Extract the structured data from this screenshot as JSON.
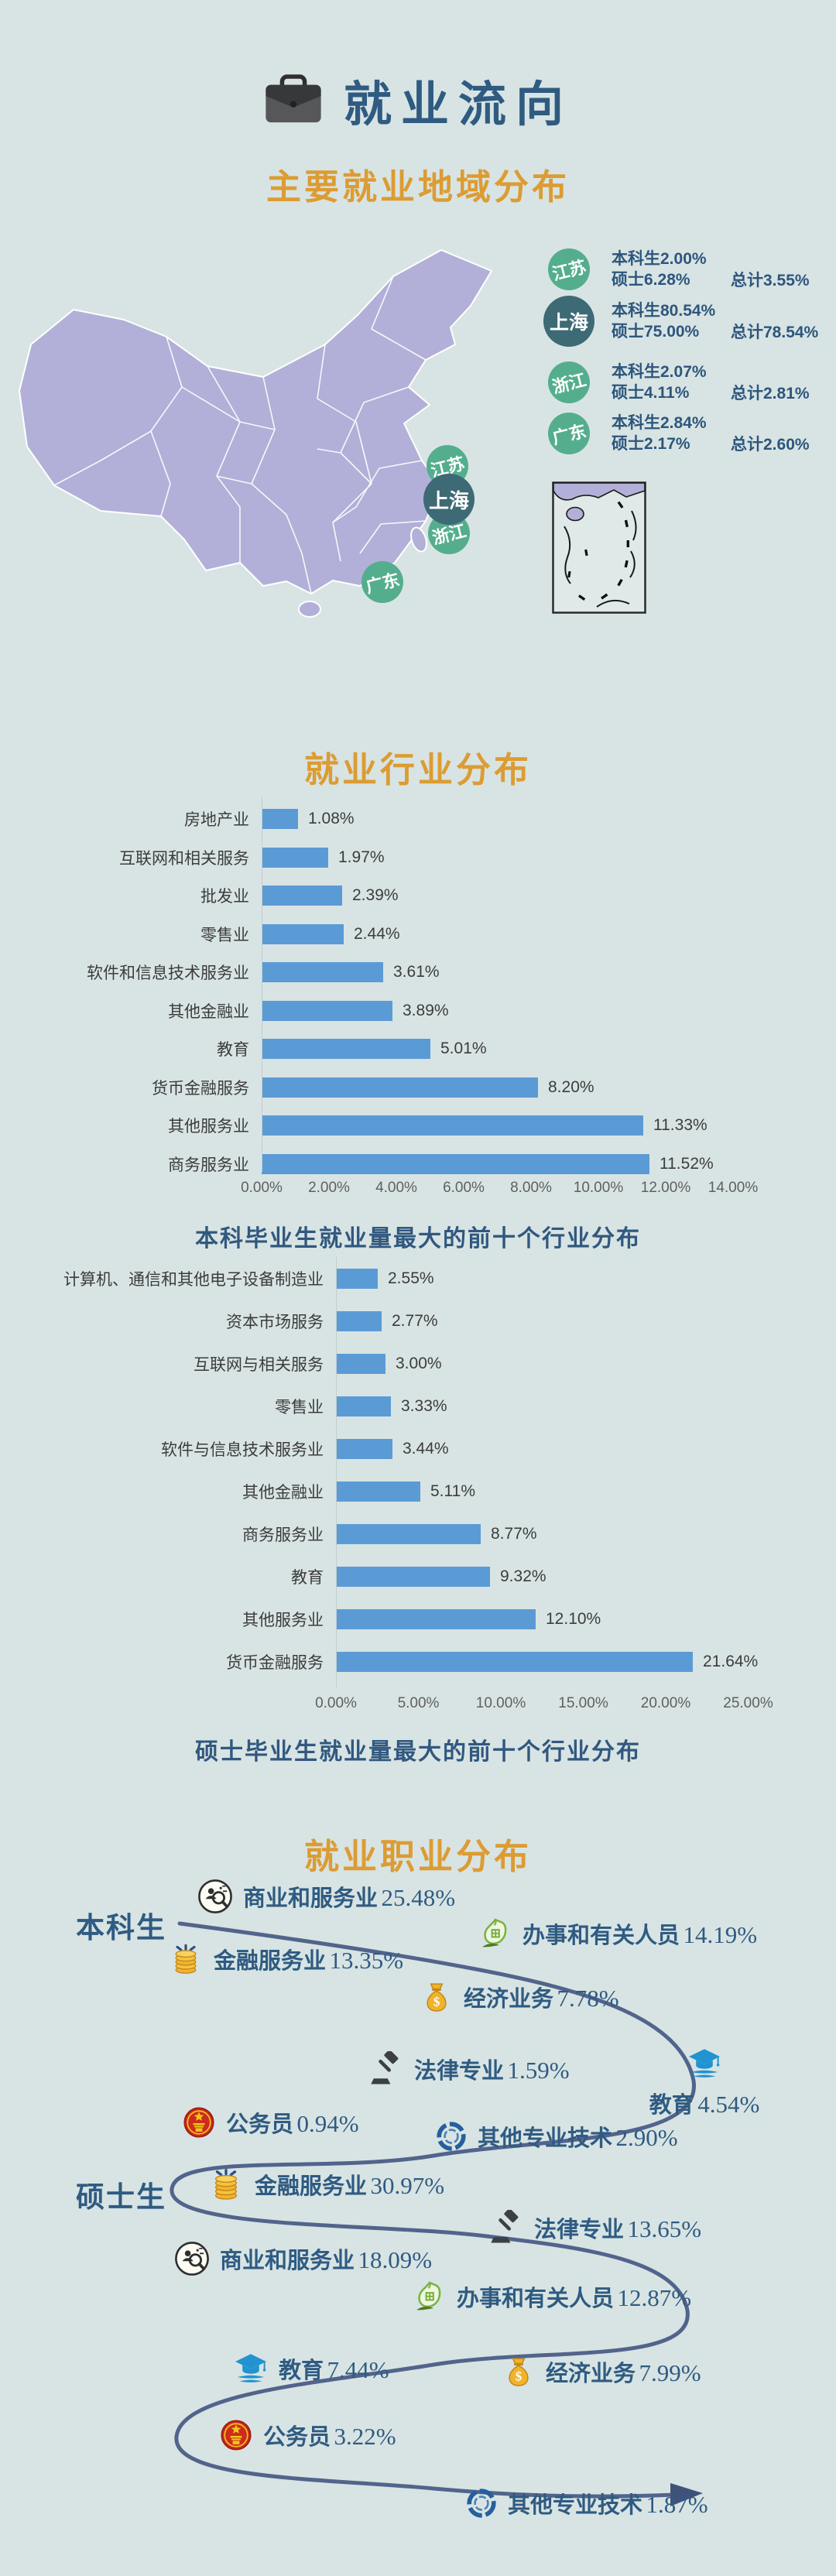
{
  "header": {
    "title": "就业流向",
    "icon": "briefcase-icon"
  },
  "sections": {
    "region": {
      "title": "主要就业地域分布"
    },
    "industry": {
      "title": "就业行业分布"
    },
    "occupation": {
      "title": "就业职业分布"
    }
  },
  "colors": {
    "background": "#d8e4e3",
    "navy": "#2f5b82",
    "orange": "#dc9c33",
    "bar_blue": "#5b9bd5",
    "map_purple": "#b2b0d8",
    "green_circle": "#54ae8d",
    "teal_circle": "#3d6a74",
    "curve": "#52648c"
  },
  "chart_data": [
    {
      "type": "table",
      "title": "主要就业地域分布",
      "rows": [
        {
          "name": "江苏",
          "undergrad": "本科生2.00%",
          "master": "硕士6.28%",
          "total": "总计3.55%"
        },
        {
          "name": "上海",
          "undergrad": "本科生80.54%",
          "master": "硕士75.00%",
          "total": "总计78.54%"
        },
        {
          "name": "浙江",
          "undergrad": "本科生2.07%",
          "master": "硕士4.11%",
          "total": "总计2.81%"
        },
        {
          "name": "广东",
          "undergrad": "本科生2.84%",
          "master": "硕士2.17%",
          "total": "总计2.60%"
        }
      ]
    },
    {
      "type": "bar",
      "orientation": "horizontal",
      "title": "就业行业分布",
      "subtitle": "本科毕业生就业量最大的前十个行业分布",
      "categories": [
        "房地产业",
        "互联网和相关服务",
        "批发业",
        "零售业",
        "软件和信息技术服务业",
        "其他金融业",
        "教育",
        "货币金融服务",
        "其他服务业",
        "商务服务业"
      ],
      "values": [
        1.08,
        1.97,
        2.39,
        2.44,
        3.61,
        3.89,
        5.01,
        8.2,
        11.33,
        11.52
      ],
      "value_labels": [
        "1.08%",
        "1.97%",
        "2.39%",
        "2.44%",
        "3.61%",
        "3.89%",
        "5.01%",
        "8.20%",
        "11.33%",
        "11.52%"
      ],
      "xlim": [
        0,
        14
      ],
      "ticks": [
        "0.00%",
        "2.00%",
        "4.00%",
        "6.00%",
        "8.00%",
        "10.00%",
        "12.00%",
        "14.00%"
      ],
      "bar_color": "#5b9bd5"
    },
    {
      "type": "bar",
      "orientation": "horizontal",
      "title": "就业行业分布",
      "subtitle": "硕士毕业生就业量最大的前十个行业分布",
      "categories": [
        "计算机、通信和其他电子设备制造业",
        "资本市场服务",
        "互联网与相关服务",
        "零售业",
        "软件与信息技术服务业",
        "其他金融业",
        "商务服务业",
        "教育",
        "其他服务业",
        "货币金融服务"
      ],
      "values": [
        2.55,
        2.77,
        3.0,
        3.33,
        3.44,
        5.11,
        8.77,
        9.32,
        12.1,
        21.64
      ],
      "value_labels": [
        "2.55%",
        "2.77%",
        "3.00%",
        "3.33%",
        "3.44%",
        "5.11%",
        "8.77%",
        "9.32%",
        "12.10%",
        "21.64%"
      ],
      "xlim": [
        0,
        25
      ],
      "ticks": [
        "0.00%",
        "5.00%",
        "10.00%",
        "15.00%",
        "20.00%",
        "25.00%"
      ],
      "bar_color": "#5b9bd5"
    },
    {
      "type": "path-flow",
      "title": "就业职业分布",
      "series": [
        {
          "name": "本科生",
          "items": [
            {
              "label": "商业和服务业",
              "value": 25.48,
              "display": "25.48%",
              "icon": "commerce-search-icon"
            },
            {
              "label": "办事和有关人员",
              "value": 14.19,
              "display": "14.19%",
              "icon": "clerk-leaf-icon"
            },
            {
              "label": "金融服务业",
              "value": 13.35,
              "display": "13.35%",
              "icon": "coins-icon"
            },
            {
              "label": "经济业务",
              "value": 7.78,
              "display": "7.78%",
              "icon": "money-bag-icon"
            },
            {
              "label": "法律专业",
              "value": 1.59,
              "display": "1.59%",
              "icon": "gavel-icon"
            },
            {
              "label": "教育",
              "value": 4.54,
              "display": "4.54%",
              "icon": "graduation-cap-icon"
            },
            {
              "label": "公务员",
              "value": 0.94,
              "display": "0.94%",
              "icon": "national-emblem-icon"
            },
            {
              "label": "其他专业技术",
              "value": 2.9,
              "display": "2.90%",
              "icon": "tech-ring-icon"
            }
          ]
        },
        {
          "name": "硕士生",
          "items": [
            {
              "label": "金融服务业",
              "value": 30.97,
              "display": "30.97%",
              "icon": "coins-icon"
            },
            {
              "label": "法律专业",
              "value": 13.65,
              "display": "13.65%",
              "icon": "gavel-icon"
            },
            {
              "label": "商业和服务业",
              "value": 18.09,
              "display": "18.09%",
              "icon": "commerce-search-icon"
            },
            {
              "label": "办事和有关人员",
              "value": 12.87,
              "display": "12.87%",
              "icon": "clerk-leaf-icon"
            },
            {
              "label": "教育",
              "value": 7.44,
              "display": "7.44%",
              "icon": "graduation-cap-icon"
            },
            {
              "label": "经济业务",
              "value": 7.99,
              "display": "7.99%",
              "icon": "money-bag-icon"
            },
            {
              "label": "公务员",
              "value": 3.22,
              "display": "3.22%",
              "icon": "national-emblem-icon"
            },
            {
              "label": "其他专业技术",
              "value": 1.87,
              "display": "1.87%",
              "icon": "tech-ring-icon"
            }
          ]
        }
      ]
    }
  ]
}
